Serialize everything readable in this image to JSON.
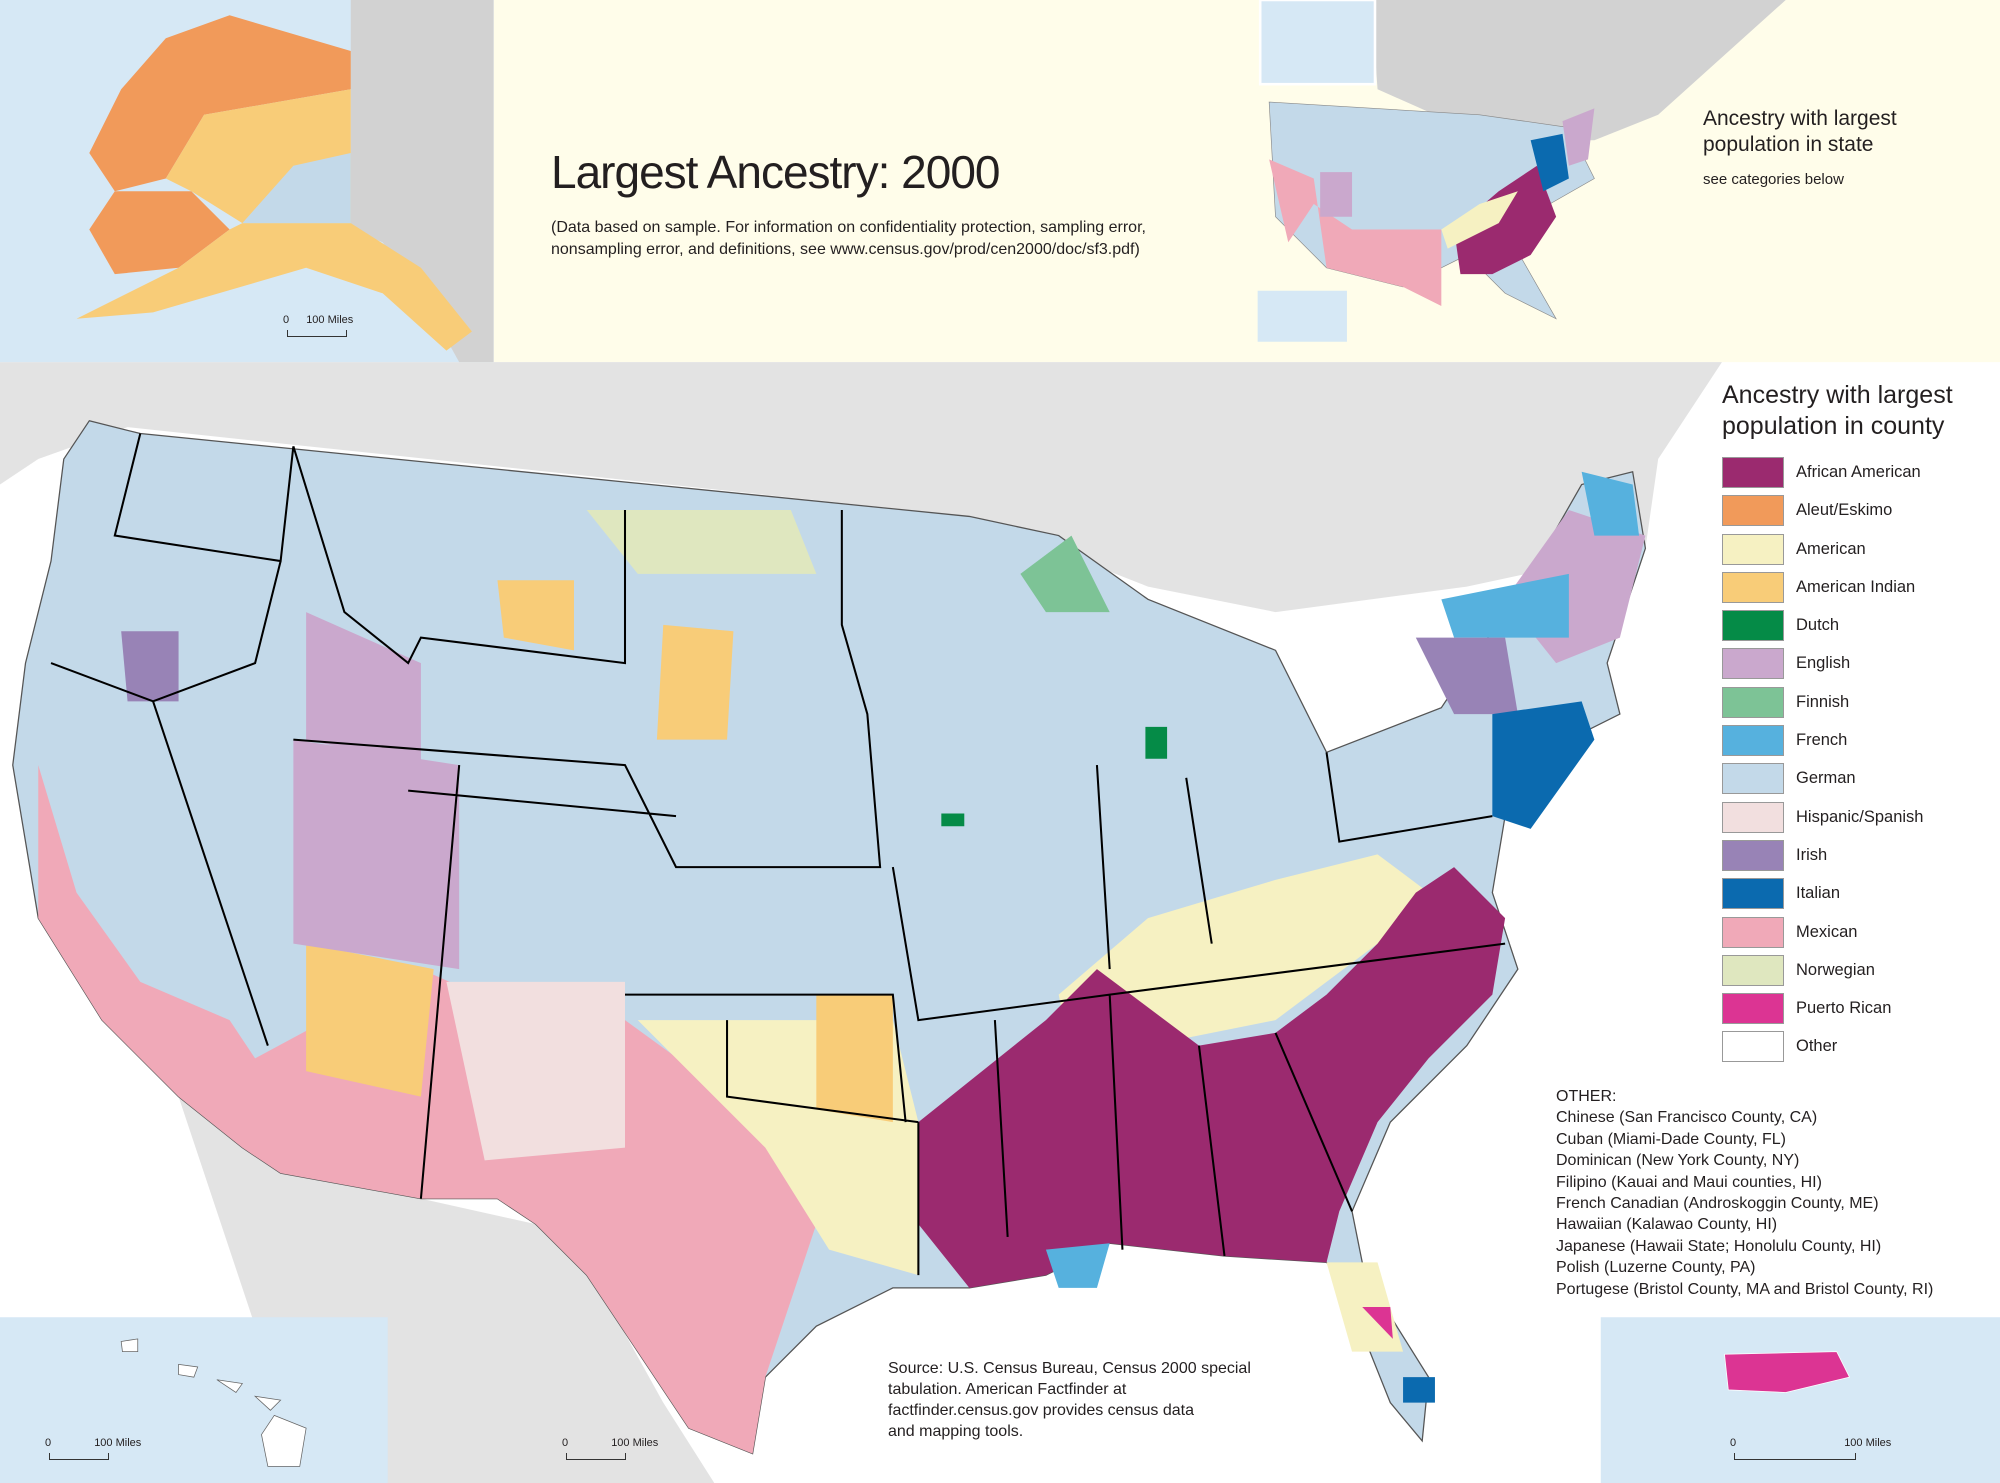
{
  "title": "Largest Ancestry: 2000",
  "subtitle_lines": [
    "(Data based on sample. For information on confidentiality protection, sampling error,",
    "nonsampling error, and definitions, see www.census.gov/prod/cen2000/doc/sf3.pdf)"
  ],
  "state_legend": {
    "title_lines": [
      "Ancestry with largest",
      "population in state"
    ],
    "note": "see categories below"
  },
  "county_legend": {
    "title_lines": [
      "Ancestry with largest",
      "population in county"
    ],
    "items": [
      {
        "label": "African American",
        "color": "#9b2a6f"
      },
      {
        "label": "Aleut/Eskimo",
        "color": "#f19a5a"
      },
      {
        "label": "American",
        "color": "#f6f1c2"
      },
      {
        "label": "American Indian",
        "color": "#f8cc78"
      },
      {
        "label": "Dutch",
        "color": "#058b47"
      },
      {
        "label": "English",
        "color": "#caa8cd"
      },
      {
        "label": "Finnish",
        "color": "#7dc396"
      },
      {
        "label": "French",
        "color": "#56b1de"
      },
      {
        "label": "German",
        "color": "#c3d9e9"
      },
      {
        "label": "Hispanic/Spanish",
        "color": "#f2dfdf"
      },
      {
        "label": "Irish",
        "color": "#9883b6"
      },
      {
        "label": "Italian",
        "color": "#0b6aaf"
      },
      {
        "label": "Mexican",
        "color": "#f0a9b8"
      },
      {
        "label": "Norwegian",
        "color": "#dfe7bf"
      },
      {
        "label": "Puerto Rican",
        "color": "#dc3493"
      },
      {
        "label": "Other",
        "color": "#ffffff"
      }
    ]
  },
  "other": {
    "heading": "OTHER:",
    "items": [
      "Chinese (San Francisco County, CA)",
      "Cuban (Miami-Dade County, FL)",
      "Dominican (New York County, NY)",
      "Filipino (Kauai and Maui counties, HI)",
      "French Canadian (Androskoggin County, ME)",
      "Hawaiian (Kalawao County, HI)",
      "Japanese (Hawaii State; Honolulu County, HI)",
      "Polish (Luzerne County, PA)",
      "Portugese (Bristol County, MA and Bristol County, RI)"
    ]
  },
  "source_lines": [
    "Source: U.S. Census Bureau, Census 2000 special",
    "tabulation. American Factfinder at",
    "factfinder.census.gov provides census data",
    "and mapping tools."
  ],
  "scale_bars": {
    "alaska": {
      "zero": "0",
      "label": "100 Miles"
    },
    "hawaii": {
      "zero": "0",
      "label": "100 Miles"
    },
    "main": {
      "zero": "0",
      "label": "100 Miles"
    },
    "puerto_rico": {
      "zero": "0",
      "label": "100 Miles"
    }
  },
  "colors": {
    "inset_water": "#d6e8f5",
    "header_background": "#fffdea",
    "neighbor_land": "#e3e3e3"
  }
}
